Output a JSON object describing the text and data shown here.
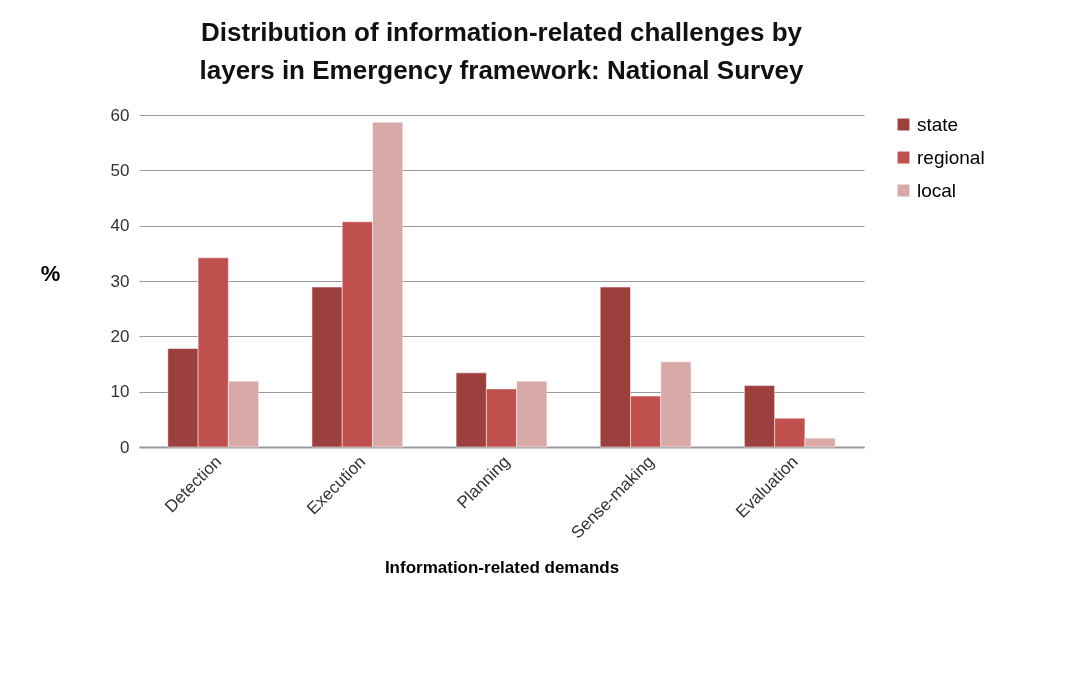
{
  "chart_data": {
    "type": "bar",
    "title": "Distribution of information-related challenges by layers in Emergency framework: National Survey",
    "xlabel": "Information-related demands",
    "ylabel": "%",
    "categories": [
      "Detection",
      "Execution",
      "Planning",
      "Sense-making",
      "Evaluation"
    ],
    "series": [
      {
        "name": "state",
        "color": "#9c403e",
        "values": [
          17.8,
          28.9,
          13.4,
          28.9,
          11.1
        ]
      },
      {
        "name": "regional",
        "color": "#c0504d",
        "values": [
          34.2,
          40.7,
          10.5,
          9.2,
          5.2
        ]
      },
      {
        "name": "local",
        "color": "#d9a9a8",
        "values": [
          11.9,
          58.7,
          11.9,
          15.4,
          1.6
        ]
      }
    ],
    "ylim": [
      0,
      60
    ],
    "yticks": [
      0,
      10,
      20,
      30,
      40,
      50,
      60
    ],
    "grid": "y",
    "legend": "right"
  }
}
